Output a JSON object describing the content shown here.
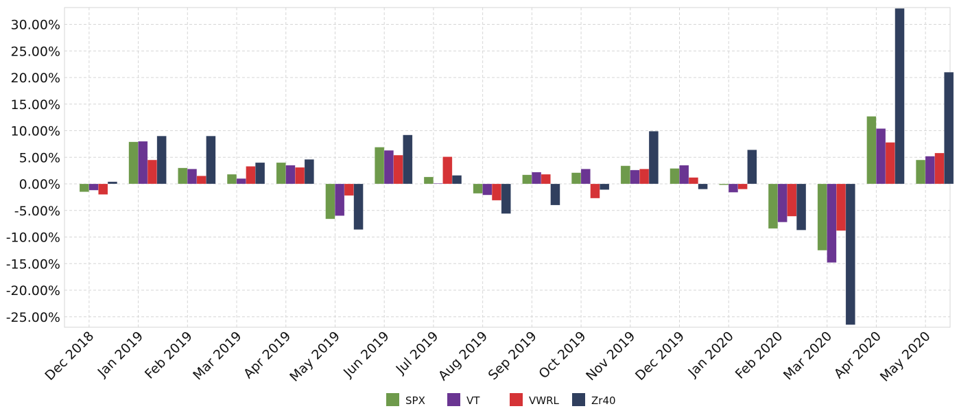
{
  "chart_data": {
    "type": "bar",
    "categories": [
      "Dec 2018",
      "Jan 2019",
      "Feb 2019",
      "Mar 2019",
      "Apr 2019",
      "May 2019",
      "Jun 2019",
      "Jul 2019",
      "Aug 2019",
      "Sep 2019",
      "Oct 2019",
      "Nov 2019",
      "Dec 2019",
      "Jan 2020",
      "Feb 2020",
      "Mar 2020",
      "Apr 2020",
      "May 2020"
    ],
    "series": [
      {
        "name": "SPX",
        "color": "#6e9a4b",
        "values": [
          -1.5,
          7.9,
          3.0,
          1.8,
          4.0,
          -6.6,
          6.9,
          1.3,
          -1.8,
          1.7,
          2.1,
          3.4,
          2.9,
          -0.2,
          -8.4,
          -12.5,
          12.7,
          4.5
        ]
      },
      {
        "name": "VT",
        "color": "#6a3592",
        "values": [
          -1.2,
          8.0,
          2.8,
          1.0,
          3.5,
          -6.0,
          6.3,
          0.1,
          -2.1,
          2.2,
          2.8,
          2.6,
          3.5,
          -1.6,
          -7.2,
          -14.8,
          10.4,
          5.2
        ]
      },
      {
        "name": "VWRL",
        "color": "#d53336",
        "values": [
          -2.0,
          4.5,
          1.5,
          3.3,
          3.1,
          -2.2,
          5.4,
          5.1,
          -3.1,
          1.8,
          -2.7,
          2.8,
          1.2,
          -1.0,
          -6.1,
          -8.8,
          7.8,
          5.8
        ]
      },
      {
        "name": "Zr40",
        "color": "#303f5e",
        "values": [
          0.4,
          9.0,
          9.0,
          4.0,
          4.6,
          -8.6,
          9.2,
          1.6,
          -5.6,
          -4.0,
          -1.1,
          9.9,
          -1.0,
          6.4,
          -8.7,
          -27.0,
          33.0,
          21.0
        ]
      }
    ],
    "ylim": [
      -26.5,
      33
    ],
    "yticks": [
      30,
      25,
      20,
      15,
      10,
      5,
      0,
      -5,
      -10,
      -15,
      -20,
      -25
    ],
    "ytick_labels": [
      "30.00%",
      "25.00%",
      "20.00%",
      "15.00%",
      "10.00%",
      "5.00%",
      "0.00%",
      "-5.00%",
      "-10.00%",
      "-15.00%",
      "-20.00%",
      "-25.00%"
    ],
    "grid": true,
    "legend_position": "bottom-center",
    "title": "",
    "xlabel": "",
    "ylabel": ""
  }
}
